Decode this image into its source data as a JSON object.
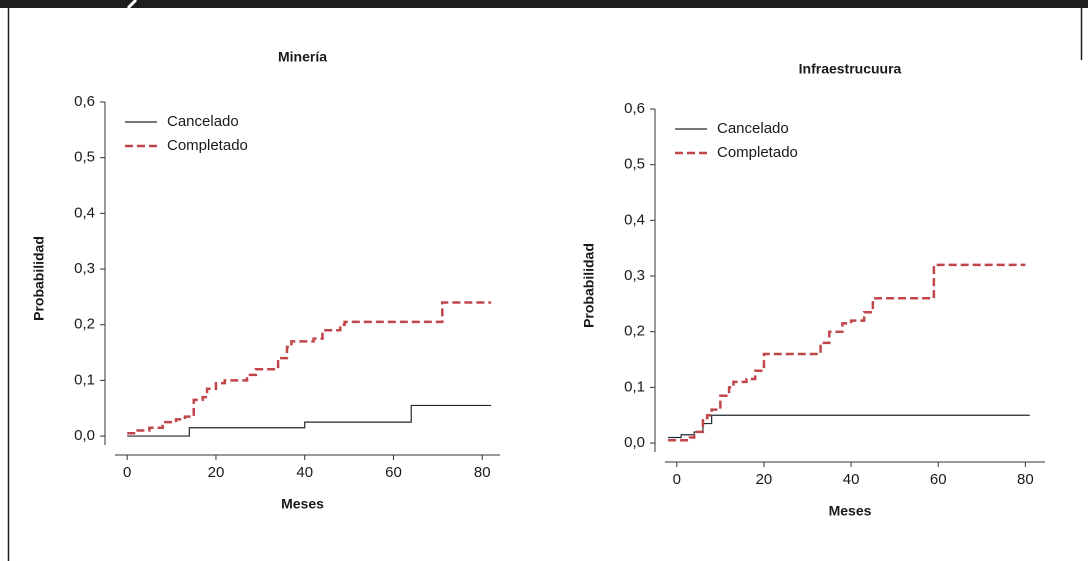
{
  "chart_data": [
    {
      "type": "line",
      "step": "post",
      "title": "Minería",
      "xlabel": "Meses",
      "ylabel": "Probabilidad",
      "legend": "upper left",
      "xlim": [
        -5,
        84
      ],
      "xticks": [
        0,
        20,
        40,
        60,
        80
      ],
      "ylim": [
        -0.034,
        0.6
      ],
      "yticks": [
        {
          "value": 0,
          "label": "0,0"
        },
        {
          "value": 0.1,
          "label": "0,1"
        },
        {
          "value": 0.2,
          "label": "0,2"
        },
        {
          "value": 0.3,
          "label": "0,3"
        },
        {
          "value": 0.4,
          "label": "0,4"
        },
        {
          "value": 0.5,
          "label": "0,5"
        },
        {
          "value": 0.6,
          "label": "0,6"
        }
      ],
      "series": [
        {
          "name": "Cancelado",
          "color": "#1f2a30",
          "dash": false,
          "x": [
            0,
            14,
            40,
            64,
            82
          ],
          "values": [
            0,
            0.015,
            0.025,
            0.055,
            0.055
          ]
        },
        {
          "name": "Completado",
          "color": "#c0464a",
          "dash": true,
          "x": [
            0,
            2,
            5,
            8,
            11,
            13,
            15,
            17,
            18,
            20,
            22,
            27,
            29,
            34,
            36,
            37,
            42,
            44,
            48,
            49,
            71,
            82
          ],
          "values": [
            0.005,
            0.01,
            0.015,
            0.025,
            0.03,
            0.035,
            0.065,
            0.07,
            0.085,
            0.095,
            0.1,
            0.11,
            0.12,
            0.14,
            0.16,
            0.17,
            0.175,
            0.19,
            0.2,
            0.205,
            0.24,
            0.24
          ]
        }
      ]
    },
    {
      "type": "line",
      "step": "post",
      "title": "Infraestrucuura",
      "xlabel": "Meses",
      "ylabel": "Probabilidad",
      "legend": "upper left",
      "xlim": [
        -5,
        84.5
      ],
      "xticks": [
        0,
        20,
        40,
        60,
        80
      ],
      "ylim": [
        -0.034,
        0.6
      ],
      "yticks": [
        {
          "value": 0,
          "label": "0,0"
        },
        {
          "value": 0.1,
          "label": "0,1"
        },
        {
          "value": 0.2,
          "label": "0,2"
        },
        {
          "value": 0.3,
          "label": "0,3"
        },
        {
          "value": 0.4,
          "label": "0,4"
        },
        {
          "value": 0.5,
          "label": "0,5"
        },
        {
          "value": 0.6,
          "label": "0,6"
        }
      ],
      "series": [
        {
          "name": "Cancelado",
          "color": "#1f2a30",
          "dash": false,
          "x": [
            -2,
            1,
            4,
            6,
            8,
            81
          ],
          "values": [
            0.01,
            0.015,
            0.02,
            0.035,
            0.05,
            0.05
          ]
        },
        {
          "name": "Completado",
          "color": "#c0464a",
          "dash": true,
          "x": [
            -2,
            3,
            4,
            6,
            7,
            8,
            10,
            12,
            13,
            16,
            18,
            20,
            33,
            35,
            38,
            40,
            43,
            45,
            59,
            80
          ],
          "values": [
            0.005,
            0.01,
            0.02,
            0.045,
            0.05,
            0.06,
            0.085,
            0.1,
            0.11,
            0.115,
            0.13,
            0.16,
            0.18,
            0.2,
            0.215,
            0.22,
            0.235,
            0.26,
            0.32,
            0.32
          ]
        }
      ]
    }
  ]
}
